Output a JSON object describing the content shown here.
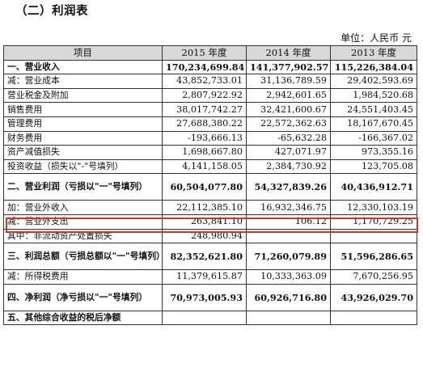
{
  "title": "（二）利润表",
  "unit": "单位：人民币 元",
  "columns": [
    "项目",
    "2015 年度",
    "2014 年度",
    "2013 年度"
  ],
  "rows": [
    {
      "label": "一、营业收入",
      "v2015": "170,234,699.84",
      "v2014": "141,377,902.57",
      "v2013": "115,226,384.04",
      "bold": true
    },
    {
      "label": "减：营业成本",
      "v2015": "43,852,733.01",
      "v2014": "31,136,789.59",
      "v2013": "29,402,593.69"
    },
    {
      "label": "营业税金及附加",
      "v2015": "2,807,922.92",
      "v2014": "2,942,601.65",
      "v2013": "1,984,520.68"
    },
    {
      "label": "销售费用",
      "v2015": "38,017,742.27",
      "v2014": "32,421,600.67",
      "v2013": "24,551,403.45"
    },
    {
      "label": "管理费用",
      "v2015": "27,688,380.22",
      "v2014": "22,572,362.63",
      "v2013": "18,167,670.45"
    },
    {
      "label": "财务费用",
      "v2015": "-193,666.13",
      "v2014": "-65,632.28",
      "v2013": "-166,367.02"
    },
    {
      "label": "资产减值损失",
      "v2015": "1,698,667.80",
      "v2014": "427,071.97",
      "v2013": "973,355.16"
    },
    {
      "label": "投资收益（损失以\"-\"号填列）",
      "v2015": "4,141,158.05",
      "v2014": "2,384,730.92",
      "v2013": "123,705.08"
    },
    {
      "label": "二、营业利润（亏损以\"一\"号填列）",
      "v2015": "60,504,077.80",
      "v2014": "54,327,839.26",
      "v2013": "40,436,912.71",
      "bold": true,
      "tall": true
    },
    {
      "label": "加：营业外收入",
      "v2015": "22,112,385.10",
      "v2014": "16,932,346.75",
      "v2013": "12,330,103.19"
    },
    {
      "label": "减：营业外支出",
      "v2015": "263,841.10",
      "v2014": "106.12",
      "v2013": "1,170,729.25"
    },
    {
      "label": "其中：非流动资产处置损失",
      "v2015": "248,980.94",
      "v2014": "",
      "v2013": ""
    },
    {
      "label": "三、利润总额（亏损总额以\"一\"号填列）",
      "v2015": "82,352,621.80",
      "v2014": "71,260,079.89",
      "v2013": "51,596,286.65",
      "bold": true,
      "tall": true
    },
    {
      "label": "减：所得税费用",
      "v2015": "11,379,615.87",
      "v2014": "10,333,363.09",
      "v2013": "7,670,256.95"
    },
    {
      "label": "四、净利润（净亏损以\"一\"号填列）",
      "v2015": "70,973,005.93",
      "v2014": "60,926,716.80",
      "v2013": "43,926,029.70",
      "bold": true,
      "tall": true
    },
    {
      "label": "五、其他综合收益的税后净额",
      "v2015": "",
      "v2014": "",
      "v2013": "",
      "bold": true
    }
  ]
}
